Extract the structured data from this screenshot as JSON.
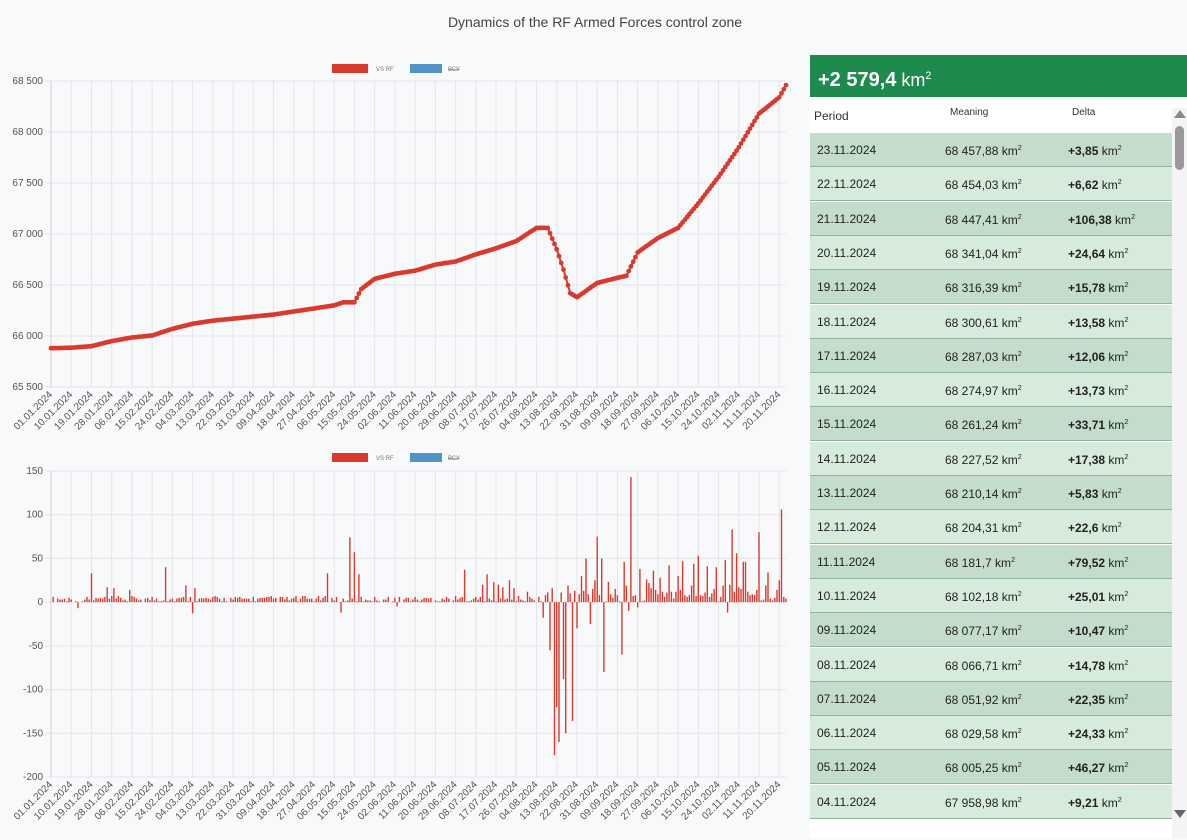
{
  "title": "Dynamics of the RF Armed Forces control zone",
  "summary": {
    "value": "+2 579,4",
    "unit": "km",
    "unit_sup": "2"
  },
  "table": {
    "headers": {
      "period": "Period",
      "meaning": "Meaning",
      "delta": "Delta"
    },
    "rows": [
      {
        "period": "23.11.2024",
        "value": "68 457,88",
        "delta": "+3,85"
      },
      {
        "period": "22.11.2024",
        "value": "68 454,03",
        "delta": "+6,62"
      },
      {
        "period": "21.11.2024",
        "value": "68 447,41",
        "delta": "+106,38"
      },
      {
        "period": "20.11.2024",
        "value": "68 341,04",
        "delta": "+24,64"
      },
      {
        "period": "19.11.2024",
        "value": "68 316,39",
        "delta": "+15,78"
      },
      {
        "period": "18.11.2024",
        "value": "68 300,61",
        "delta": "+13,58"
      },
      {
        "period": "17.11.2024",
        "value": "68 287,03",
        "delta": "+12,06"
      },
      {
        "period": "16.11.2024",
        "value": "68 274,97",
        "delta": "+13,73"
      },
      {
        "period": "15.11.2024",
        "value": "68 261,24",
        "delta": "+33,71"
      },
      {
        "period": "14.11.2024",
        "value": "68 227,52",
        "delta": "+17,38"
      },
      {
        "period": "13.11.2024",
        "value": "68 210,14",
        "delta": "+5,83"
      },
      {
        "period": "12.11.2024",
        "value": "68 204,31",
        "delta": "+22,6"
      },
      {
        "period": "11.11.2024",
        "value": "68 181,7",
        "delta": "+79,52"
      },
      {
        "period": "10.11.2024",
        "value": "68 102,18",
        "delta": "+25,01"
      },
      {
        "period": "09.11.2024",
        "value": "68 077,17",
        "delta": "+10,47"
      },
      {
        "period": "08.11.2024",
        "value": "68 066,71",
        "delta": "+14,78"
      },
      {
        "period": "07.11.2024",
        "value": "68 051,92",
        "delta": "+22,35"
      },
      {
        "period": "06.11.2024",
        "value": "68 029,58",
        "delta": "+24,33"
      },
      {
        "period": "05.11.2024",
        "value": "68 005,25",
        "delta": "+46,27"
      },
      {
        "period": "04.11.2024",
        "value": "67 958,98",
        "delta": "+9,21"
      }
    ],
    "unit": "km",
    "unit_sup": "2"
  },
  "colors": {
    "series": "#d93a2e",
    "secondary": "#5094c7",
    "accent": "#1e8a4d"
  },
  "chart_data": [
    {
      "type": "line",
      "legend": [
        "VS RF",
        "ВСУ"
      ],
      "ylim": [
        65500,
        68500
      ],
      "yticks": [
        65500,
        66000,
        66500,
        67000,
        67500,
        68000,
        68500
      ],
      "ytick_labels": [
        "65 500",
        "66 000",
        "66 500",
        "67 000",
        "67 500",
        "68 000",
        "68 500"
      ],
      "x_labels": [
        "01.01.2024",
        "10.01.2024",
        "19.01.2024",
        "28.01.2024",
        "06.02.2024",
        "15.02.2024",
        "24.02.2024",
        "04.03.2024",
        "13.03.2024",
        "22.03.2024",
        "31.03.2024",
        "09.04.2024",
        "18.04.2024",
        "27.04.2024",
        "06.05.2024",
        "15.05.2024",
        "24.05.2024",
        "02.06.2024",
        "11.06.2024",
        "20.06.2024",
        "29.06.2024",
        "08.07.2024",
        "17.07.2024",
        "26.07.2024",
        "04.08.2024",
        "13.08.2024",
        "22.08.2024",
        "31.08.2024",
        "09.09.2024",
        "18.09.2024",
        "27.09.2024",
        "06.10.2024",
        "15.10.2024",
        "24.10.2024",
        "02.11.2024",
        "11.11.2024",
        "20.11.2024"
      ],
      "series": [
        {
          "anchors": [
            [
              "2024-01-01",
              65880
            ],
            [
              "2024-01-10",
              65885
            ],
            [
              "2024-01-19",
              65900
            ],
            [
              "2024-01-28",
              65950
            ],
            [
              "2024-02-06",
              65985
            ],
            [
              "2024-02-15",
              66005
            ],
            [
              "2024-02-24",
              66070
            ],
            [
              "2024-03-04",
              66120
            ],
            [
              "2024-03-13",
              66150
            ],
            [
              "2024-03-22",
              66170
            ],
            [
              "2024-03-31",
              66190
            ],
            [
              "2024-04-09",
              66210
            ],
            [
              "2024-04-18",
              66240
            ],
            [
              "2024-04-27",
              66270
            ],
            [
              "2024-05-06",
              66300
            ],
            [
              "2024-05-10",
              66330
            ],
            [
              "2024-05-15",
              66330
            ],
            [
              "2024-05-18",
              66460
            ],
            [
              "2024-05-24",
              66560
            ],
            [
              "2024-06-02",
              66610
            ],
            [
              "2024-06-11",
              66640
            ],
            [
              "2024-06-20",
              66700
            ],
            [
              "2024-06-29",
              66730
            ],
            [
              "2024-07-08",
              66800
            ],
            [
              "2024-07-17",
              66860
            ],
            [
              "2024-07-26",
              66930
            ],
            [
              "2024-08-04",
              67060
            ],
            [
              "2024-08-09",
              67060
            ],
            [
              "2024-08-13",
              66850
            ],
            [
              "2024-08-16",
              66650
            ],
            [
              "2024-08-19",
              66420
            ],
            [
              "2024-08-22",
              66380
            ],
            [
              "2024-08-31",
              66520
            ],
            [
              "2024-09-09",
              66570
            ],
            [
              "2024-09-13",
              66590
            ],
            [
              "2024-09-18",
              66820
            ],
            [
              "2024-09-27",
              66960
            ],
            [
              "2024-10-06",
              67060
            ],
            [
              "2024-10-15",
              67300
            ],
            [
              "2024-10-24",
              67560
            ],
            [
              "2024-11-02",
              67850
            ],
            [
              "2024-11-11",
              68180
            ],
            [
              "2024-11-20",
              68340
            ],
            [
              "2024-11-23",
              68460
            ]
          ]
        }
      ]
    },
    {
      "type": "bar",
      "legend": [
        "VS RF",
        "ВСУ"
      ],
      "ylim": [
        -200,
        150
      ],
      "yticks": [
        -200,
        -150,
        -100,
        -50,
        0,
        50,
        100,
        150
      ],
      "ytick_labels": [
        "-200",
        "-150",
        "-100",
        "-50",
        "0",
        "50",
        "100",
        "150"
      ],
      "x_labels": [
        "01.01.2024",
        "10.01.2024",
        "19.01.2024",
        "28.01.2024",
        "06.02.2024",
        "15.02.2024",
        "24.02.2024",
        "04.03.2024",
        "13.03.2024",
        "22.03.2024",
        "31.03.2024",
        "09.04.2024",
        "18.04.2024",
        "27.04.2024",
        "06.05.2024",
        "15.05.2024",
        "24.05.2024",
        "02.06.2024",
        "11.06.2024",
        "20.06.2024",
        "29.06.2024",
        "08.07.2024",
        "17.07.2024",
        "26.07.2024",
        "04.08.2024",
        "13.08.2024",
        "22.08.2024",
        "31.08.2024",
        "09.09.2024",
        "18.09.2024",
        "27.09.2024",
        "06.10.2024",
        "15.10.2024",
        "24.10.2024",
        "02.11.2024",
        "11.11.2024",
        "20.11.2024"
      ],
      "series": [
        {
          "notable": [
            [
              "2024-01-13",
              -7
            ],
            [
              "2024-01-19",
              33
            ],
            [
              "2024-01-26",
              17
            ],
            [
              "2024-01-29",
              16
            ],
            [
              "2024-02-05",
              14
            ],
            [
              "2024-02-21",
              40
            ],
            [
              "2024-03-01",
              19
            ],
            [
              "2024-03-04",
              -13
            ],
            [
              "2024-03-05",
              16
            ],
            [
              "2024-05-03",
              33
            ],
            [
              "2024-05-09",
              -12
            ],
            [
              "2024-05-13",
              74
            ],
            [
              "2024-05-15",
              57
            ],
            [
              "2024-05-17",
              32
            ],
            [
              "2024-06-03",
              -5
            ],
            [
              "2024-07-03",
              37
            ],
            [
              "2024-07-11",
              20
            ],
            [
              "2024-07-13",
              32
            ],
            [
              "2024-07-16",
              23
            ],
            [
              "2024-07-18",
              20
            ],
            [
              "2024-07-20",
              17
            ],
            [
              "2024-07-23",
              25
            ],
            [
              "2024-07-25",
              16
            ],
            [
              "2024-07-31",
              12
            ],
            [
              "2024-08-07",
              -18
            ],
            [
              "2024-08-10",
              -55
            ],
            [
              "2024-08-12",
              -175
            ],
            [
              "2024-08-13",
              -120
            ],
            [
              "2024-08-14",
              -160
            ],
            [
              "2024-08-16",
              -88
            ],
            [
              "2024-08-17",
              -150
            ],
            [
              "2024-08-20",
              -136
            ],
            [
              "2024-08-22",
              -30
            ],
            [
              "2024-08-24",
              30
            ],
            [
              "2024-08-26",
              50
            ],
            [
              "2024-08-28",
              -25
            ],
            [
              "2024-08-30",
              25
            ],
            [
              "2024-08-31",
              75
            ],
            [
              "2024-09-02",
              50
            ],
            [
              "2024-09-03",
              -80
            ],
            [
              "2024-09-05",
              23
            ],
            [
              "2024-09-11",
              -60
            ],
            [
              "2024-09-12",
              46
            ],
            [
              "2024-09-14",
              -10
            ],
            [
              "2024-09-15",
              143
            ],
            [
              "2024-09-18",
              -6
            ],
            [
              "2024-09-19",
              38
            ],
            [
              "2024-09-22",
              26
            ],
            [
              "2024-09-25",
              36
            ],
            [
              "2024-09-28",
              28
            ],
            [
              "2024-10-02",
              42
            ],
            [
              "2024-10-06",
              30
            ],
            [
              "2024-10-08",
              47
            ],
            [
              "2024-10-13",
              44
            ],
            [
              "2024-10-15",
              53
            ],
            [
              "2024-10-19",
              41
            ],
            [
              "2024-10-23",
              40
            ],
            [
              "2024-10-27",
              48
            ],
            [
              "2024-10-28",
              -12
            ],
            [
              "2024-10-30",
              83
            ],
            [
              "2024-11-01",
              56
            ],
            [
              "2024-11-04",
              46
            ],
            [
              "2024-11-05",
              46
            ],
            [
              "2024-11-11",
              80
            ],
            [
              "2024-11-15",
              34
            ],
            [
              "2024-11-20",
              25
            ],
            [
              "2024-11-21",
              106
            ],
            [
              "2024-11-23",
              4
            ]
          ]
        }
      ]
    }
  ]
}
